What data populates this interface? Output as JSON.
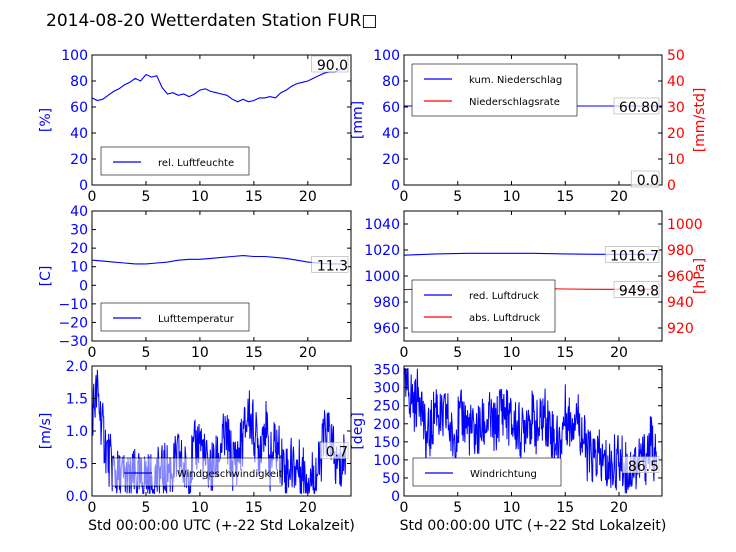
{
  "title": "2014-08-20 Wetterdaten Station FUR□",
  "colors": {
    "primary": "#0000ff",
    "secondary": "#ff0000",
    "axis": "#000000"
  },
  "chart_data": [
    {
      "id": "humidity",
      "type": "line",
      "ylabel": "[%]",
      "ylim": [
        0,
        100
      ],
      "yticks": [
        "0",
        "20",
        "40",
        "60",
        "80",
        "100"
      ],
      "xlim": [
        0,
        24
      ],
      "xticks": [
        "0",
        "5",
        "10",
        "15",
        "20"
      ],
      "legend": "rel. Luftfeuchte",
      "legend_position": "lower-left",
      "annotation": "90.0",
      "series": [
        {
          "name": "rel. Luftfeuchte",
          "color": "#0000ff",
          "x": [
            0,
            0.5,
            1,
            1.5,
            2,
            2.5,
            3,
            3.5,
            4,
            4.5,
            5,
            5.5,
            6,
            6.5,
            7,
            7.5,
            8,
            8.5,
            9,
            9.5,
            10,
            10.5,
            11,
            11.5,
            12,
            12.5,
            13,
            13.5,
            14,
            14.5,
            15,
            15.5,
            16,
            16.5,
            17,
            17.5,
            18,
            18.5,
            19,
            19.5,
            20,
            20.5,
            21,
            21.5,
            22,
            22.5,
            23,
            23.5
          ],
          "y": [
            67,
            65,
            66,
            69,
            72,
            74,
            77,
            79,
            82,
            80,
            85,
            83,
            84,
            75,
            70,
            71,
            69,
            70,
            68,
            70,
            73,
            74,
            72,
            71,
            70,
            69,
            66,
            64,
            66,
            64,
            65,
            67,
            67,
            68,
            67,
            71,
            73,
            76,
            78,
            79,
            80,
            82,
            84,
            86,
            87,
            87,
            89,
            90
          ]
        }
      ]
    },
    {
      "id": "precipitation",
      "type": "line",
      "ylabel": "[mm]",
      "ylim": [
        0,
        100
      ],
      "yticks": [
        "0",
        "20",
        "40",
        "60",
        "80",
        "100"
      ],
      "ylabel_right": "[mm/std]",
      "ylim_right": [
        0,
        50
      ],
      "yticks_right": [
        "0",
        "10",
        "20",
        "30",
        "40",
        "50"
      ],
      "xlim": [
        0,
        24
      ],
      "xticks": [
        "0",
        "5",
        "10",
        "15",
        "20"
      ],
      "legend_position": "upper-left",
      "annotations": [
        "60.80",
        "0.0"
      ],
      "series": [
        {
          "name": "kum. Niederschlag",
          "color": "#0000ff",
          "axis": "left",
          "x": [
            0,
            24
          ],
          "y": [
            60.8,
            60.8
          ]
        },
        {
          "name": "Niederschlagsrate",
          "color": "#ff0000",
          "axis": "right",
          "x": [
            0,
            24
          ],
          "y": [
            0,
            0
          ]
        }
      ]
    },
    {
      "id": "temperature",
      "type": "line",
      "ylabel": "[C]",
      "ylim": [
        -30,
        40
      ],
      "yticks": [
        "−30",
        "−20",
        "−10",
        "0",
        "10",
        "20",
        "30",
        "40"
      ],
      "xlim": [
        0,
        24
      ],
      "xticks": [
        "0",
        "5",
        "10",
        "15",
        "20"
      ],
      "legend": "Lufttemperatur",
      "legend_position": "lower-left",
      "annotation": "11.3",
      "series": [
        {
          "name": "Lufttemperatur",
          "color": "#0000ff",
          "x": [
            0,
            1,
            2,
            3,
            4,
            5,
            6,
            7,
            8,
            9,
            10,
            11,
            12,
            13,
            14,
            15,
            16,
            17,
            18,
            19,
            20,
            21,
            22,
            23,
            23.5
          ],
          "y": [
            13.5,
            13,
            12.5,
            12,
            11.5,
            11.5,
            12,
            12.5,
            13.5,
            14,
            14,
            14.5,
            15,
            15.5,
            16,
            15.5,
            15.5,
            15,
            14.5,
            13.5,
            12.5,
            12,
            11.5,
            11.5,
            11.3
          ]
        }
      ]
    },
    {
      "id": "pressure",
      "type": "line",
      "ylim": [
        950,
        1050
      ],
      "yticks": [
        "960",
        "980",
        "1000",
        "1020",
        "1040"
      ],
      "ylabel_right": "[hPa]",
      "ylim_right": [
        910,
        1010
      ],
      "yticks_right": [
        "920",
        "940",
        "960",
        "980",
        "1000"
      ],
      "xlim": [
        0,
        24
      ],
      "xticks": [
        "0",
        "5",
        "10",
        "15",
        "20"
      ],
      "legend_position": "lower-left",
      "annotations": [
        "1016.7",
        "949.8"
      ],
      "series": [
        {
          "name": "red. Luftdruck",
          "color": "#0000ff",
          "axis": "left",
          "x": [
            0,
            3,
            6,
            9,
            12,
            15,
            18,
            21,
            23.5
          ],
          "y": [
            1016,
            1017,
            1017.5,
            1017.5,
            1017.5,
            1017,
            1016.7,
            1016.7,
            1016.7
          ]
        },
        {
          "name": "abs. Luftdruck",
          "color": "#ff0000",
          "axis": "right",
          "x": [
            0,
            3,
            6,
            9,
            12,
            15,
            18,
            21,
            23.5
          ],
          "y": [
            949.5,
            950,
            950.5,
            950.5,
            950.5,
            950,
            949.8,
            949.8,
            949.8
          ]
        }
      ]
    },
    {
      "id": "windspeed",
      "type": "line",
      "ylabel": "[m/s]",
      "ylim": [
        0,
        2.0
      ],
      "yticks": [
        "0.0",
        "0.5",
        "1.0",
        "1.5",
        "2.0"
      ],
      "xlim": [
        0,
        24
      ],
      "xticks": [
        "0",
        "5",
        "10",
        "15",
        "20"
      ],
      "xlabel": "Std 00:00:00 UTC (+-22 Std Lokalzeit)",
      "legend": "Windgeschwindigkeit",
      "legend_position": "lower-center",
      "annotation": "0.7",
      "series": [
        {
          "name": "Windgeschwindigkeit",
          "color": "#0000ff",
          "noisy": true,
          "x": [
            0,
            0.5,
            1,
            1.5,
            2,
            2.5,
            3,
            3.5,
            4,
            4.5,
            5,
            5.5,
            6,
            6.5,
            7,
            7.5,
            8,
            8.5,
            9,
            9.5,
            10,
            10.5,
            11,
            11.5,
            12,
            12.5,
            13,
            13.5,
            14,
            14.5,
            15,
            15.5,
            16,
            16.5,
            17,
            17.5,
            18,
            18.5,
            19,
            19.5,
            20,
            20.5,
            21,
            21.5,
            22,
            22.5,
            23,
            23.5
          ],
          "y": [
            1.3,
            1.6,
            1.0,
            0.6,
            0.4,
            0.25,
            0.3,
            0.2,
            0.3,
            0.2,
            0.3,
            0.2,
            0.3,
            0.35,
            0.4,
            0.4,
            0.6,
            0.4,
            0.35,
            0.7,
            0.9,
            0.5,
            0.4,
            0.5,
            0.8,
            0.9,
            0.5,
            0.6,
            0.9,
            1.3,
            1.0,
            0.7,
            1.2,
            0.5,
            0.8,
            0.6,
            0.4,
            0.5,
            0.45,
            0.4,
            0.3,
            0.3,
            0.4,
            0.9,
            1.0,
            0.5,
            0.4,
            0.7
          ]
        }
      ]
    },
    {
      "id": "winddirection",
      "type": "line",
      "ylabel": "[deg]",
      "ylim": [
        0,
        360
      ],
      "yticks": [
        "0",
        "50",
        "100",
        "150",
        "200",
        "250",
        "300",
        "350"
      ],
      "xlim": [
        0,
        24
      ],
      "xticks": [
        "0",
        "5",
        "10",
        "15",
        "20"
      ],
      "xlabel": "Std 00:00:00 UTC (+-22 Std Lokalzeit)",
      "legend": "Windrichtung",
      "legend_position": "lower-left",
      "annotation": "86.5",
      "series": [
        {
          "name": "Windrichtung",
          "color": "#0000ff",
          "noisy": true,
          "x": [
            0,
            0.5,
            1,
            1.5,
            2,
            2.5,
            3,
            3.5,
            4,
            4.5,
            5,
            5.5,
            6,
            6.5,
            7,
            7.5,
            8,
            8.5,
            9,
            9.5,
            10,
            10.5,
            11,
            11.5,
            12,
            12.5,
            13,
            13.5,
            14,
            14.5,
            15,
            15.5,
            16,
            16.5,
            17,
            17.5,
            18,
            18.5,
            19,
            19.5,
            20,
            20.5,
            21,
            21.5,
            22,
            22.5,
            23,
            23.5
          ],
          "y": [
            300,
            290,
            250,
            300,
            150,
            180,
            260,
            200,
            230,
            150,
            200,
            220,
            190,
            170,
            180,
            200,
            210,
            180,
            250,
            230,
            200,
            190,
            170,
            230,
            210,
            180,
            230,
            200,
            160,
            140,
            230,
            200,
            240,
            180,
            120,
            100,
            110,
            90,
            80,
            90,
            100,
            80,
            70,
            90,
            100,
            110,
            150,
            86.5
          ]
        }
      ]
    }
  ]
}
